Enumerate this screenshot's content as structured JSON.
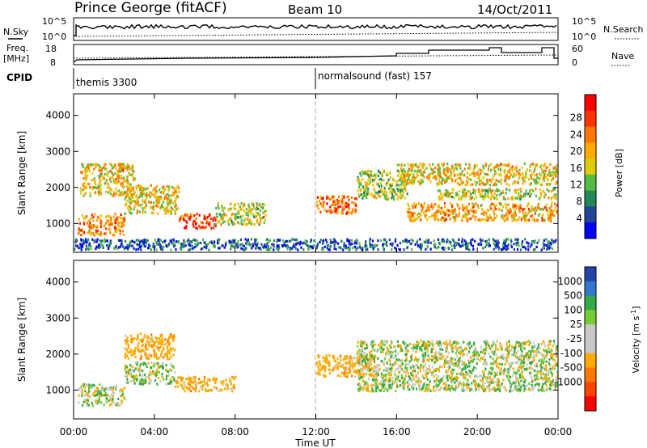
{
  "header": {
    "station": "Prince George (fitACF)",
    "beam": "Beam 10",
    "date": "14/Oct/2011"
  },
  "top_panels": {
    "nsky_label": "N.Sky",
    "nsky_ticks": [
      "10^5",
      "10^0"
    ],
    "nsearch_label": "N.Search",
    "freq_label": "Freq.",
    "freq_unit": "[MHz]",
    "freq_ticks": [
      "18",
      "8"
    ],
    "nave_label": "Nave",
    "nave_ticks": [
      "60",
      "0"
    ],
    "cpid_label": "CPID",
    "cpid_segments": [
      {
        "name": "themis 3300",
        "start_hour": 0
      },
      {
        "name": "normalsound (fast) 157",
        "start_hour": 12
      }
    ]
  },
  "axes": {
    "ylabel": "Slant Range [km]",
    "yticks": [
      "4000",
      "3000",
      "2000",
      "1000"
    ],
    "xlabel": "Time UT",
    "xticks": [
      "00:00",
      "04:00",
      "08:00",
      "12:00",
      "16:00",
      "20:00",
      "00:00"
    ]
  },
  "power_scale": {
    "label": "Power [dB]",
    "ticks": [
      "28",
      "24",
      "20",
      "16",
      "12",
      "8",
      "4"
    ],
    "colors": [
      "#ff0000",
      "#ff3300",
      "#ff7700",
      "#ffaa00",
      "#ddcc00",
      "#55bb44",
      "#228855",
      "#224499",
      "#0000ff"
    ]
  },
  "velocity_scale": {
    "label": "Velocity [m s",
    "label_sup": "-1",
    "label_end": "]",
    "ticks": [
      "1000",
      "500",
      "100",
      "25",
      "-25",
      "-100",
      "-500",
      "-1000"
    ],
    "colors": [
      "#2244aa",
      "#3377cc",
      "#33aa44",
      "#77cc33",
      "#c8c8c8",
      "#c8c8c8",
      "#ffaa00",
      "#ff7700",
      "#ff4400",
      "#ff0000"
    ]
  },
  "chart_data": [
    {
      "type": "heatmap",
      "title": "Power",
      "xlabel": "Time UT",
      "ylabel": "Slant Range [km]",
      "xlim": [
        0,
        24
      ],
      "ylim": [
        200,
        4600
      ],
      "colorbar": "Power [dB]",
      "clim": [
        0,
        32
      ],
      "regions": [
        {
          "t": [
            0.2,
            2.5
          ],
          "r": [
            700,
            1300
          ],
          "power": 22
        },
        {
          "t": [
            2.5,
            5.2
          ],
          "r": [
            1300,
            2100
          ],
          "power": 18
        },
        {
          "t": [
            5.2,
            7.0
          ],
          "r": [
            900,
            1300
          ],
          "power": 27
        },
        {
          "t": [
            7.0,
            9.5
          ],
          "r": [
            1000,
            1600
          ],
          "power": 16
        },
        {
          "t": [
            0.3,
            3.0
          ],
          "r": [
            1800,
            2700
          ],
          "power": 18
        },
        {
          "t": [
            12.0,
            14.0
          ],
          "r": [
            1300,
            1800
          ],
          "power": 24
        },
        {
          "t": [
            14.0,
            16.5
          ],
          "r": [
            1700,
            2500
          ],
          "power": 14
        },
        {
          "t": [
            16.5,
            24.0
          ],
          "r": [
            1100,
            1600
          ],
          "power": 20
        },
        {
          "t": [
            16.0,
            24.0
          ],
          "r": [
            2100,
            2700
          ],
          "power": 18
        },
        {
          "t": [
            18.0,
            24.0
          ],
          "r": [
            1700,
            2000
          ],
          "power": 16
        },
        {
          "t": [
            0.0,
            24.0
          ],
          "r": [
            300,
            600
          ],
          "power": 6
        }
      ]
    },
    {
      "type": "heatmap",
      "title": "Velocity",
      "xlabel": "Time UT",
      "ylabel": "Slant Range [km]",
      "xlim": [
        0,
        24
      ],
      "ylim": [
        200,
        4600
      ],
      "colorbar": "Velocity [m s-1]",
      "clim": [
        -1000,
        1000
      ],
      "regions": [
        {
          "t": [
            0.2,
            2.5
          ],
          "r": [
            600,
            1200
          ],
          "velocity": 0
        },
        {
          "t": [
            2.5,
            5.0
          ],
          "r": [
            1200,
            1800
          ],
          "velocity": 0
        },
        {
          "t": [
            5.0,
            8.0
          ],
          "r": [
            1000,
            1400
          ],
          "velocity": -300
        },
        {
          "t": [
            2.5,
            5.0
          ],
          "r": [
            1900,
            2600
          ],
          "velocity": -300
        },
        {
          "t": [
            12.0,
            15.0
          ],
          "r": [
            1400,
            2000
          ],
          "velocity": -300
        },
        {
          "t": [
            14.0,
            24.0
          ],
          "r": [
            1000,
            2400
          ],
          "velocity": 0
        }
      ]
    }
  ]
}
